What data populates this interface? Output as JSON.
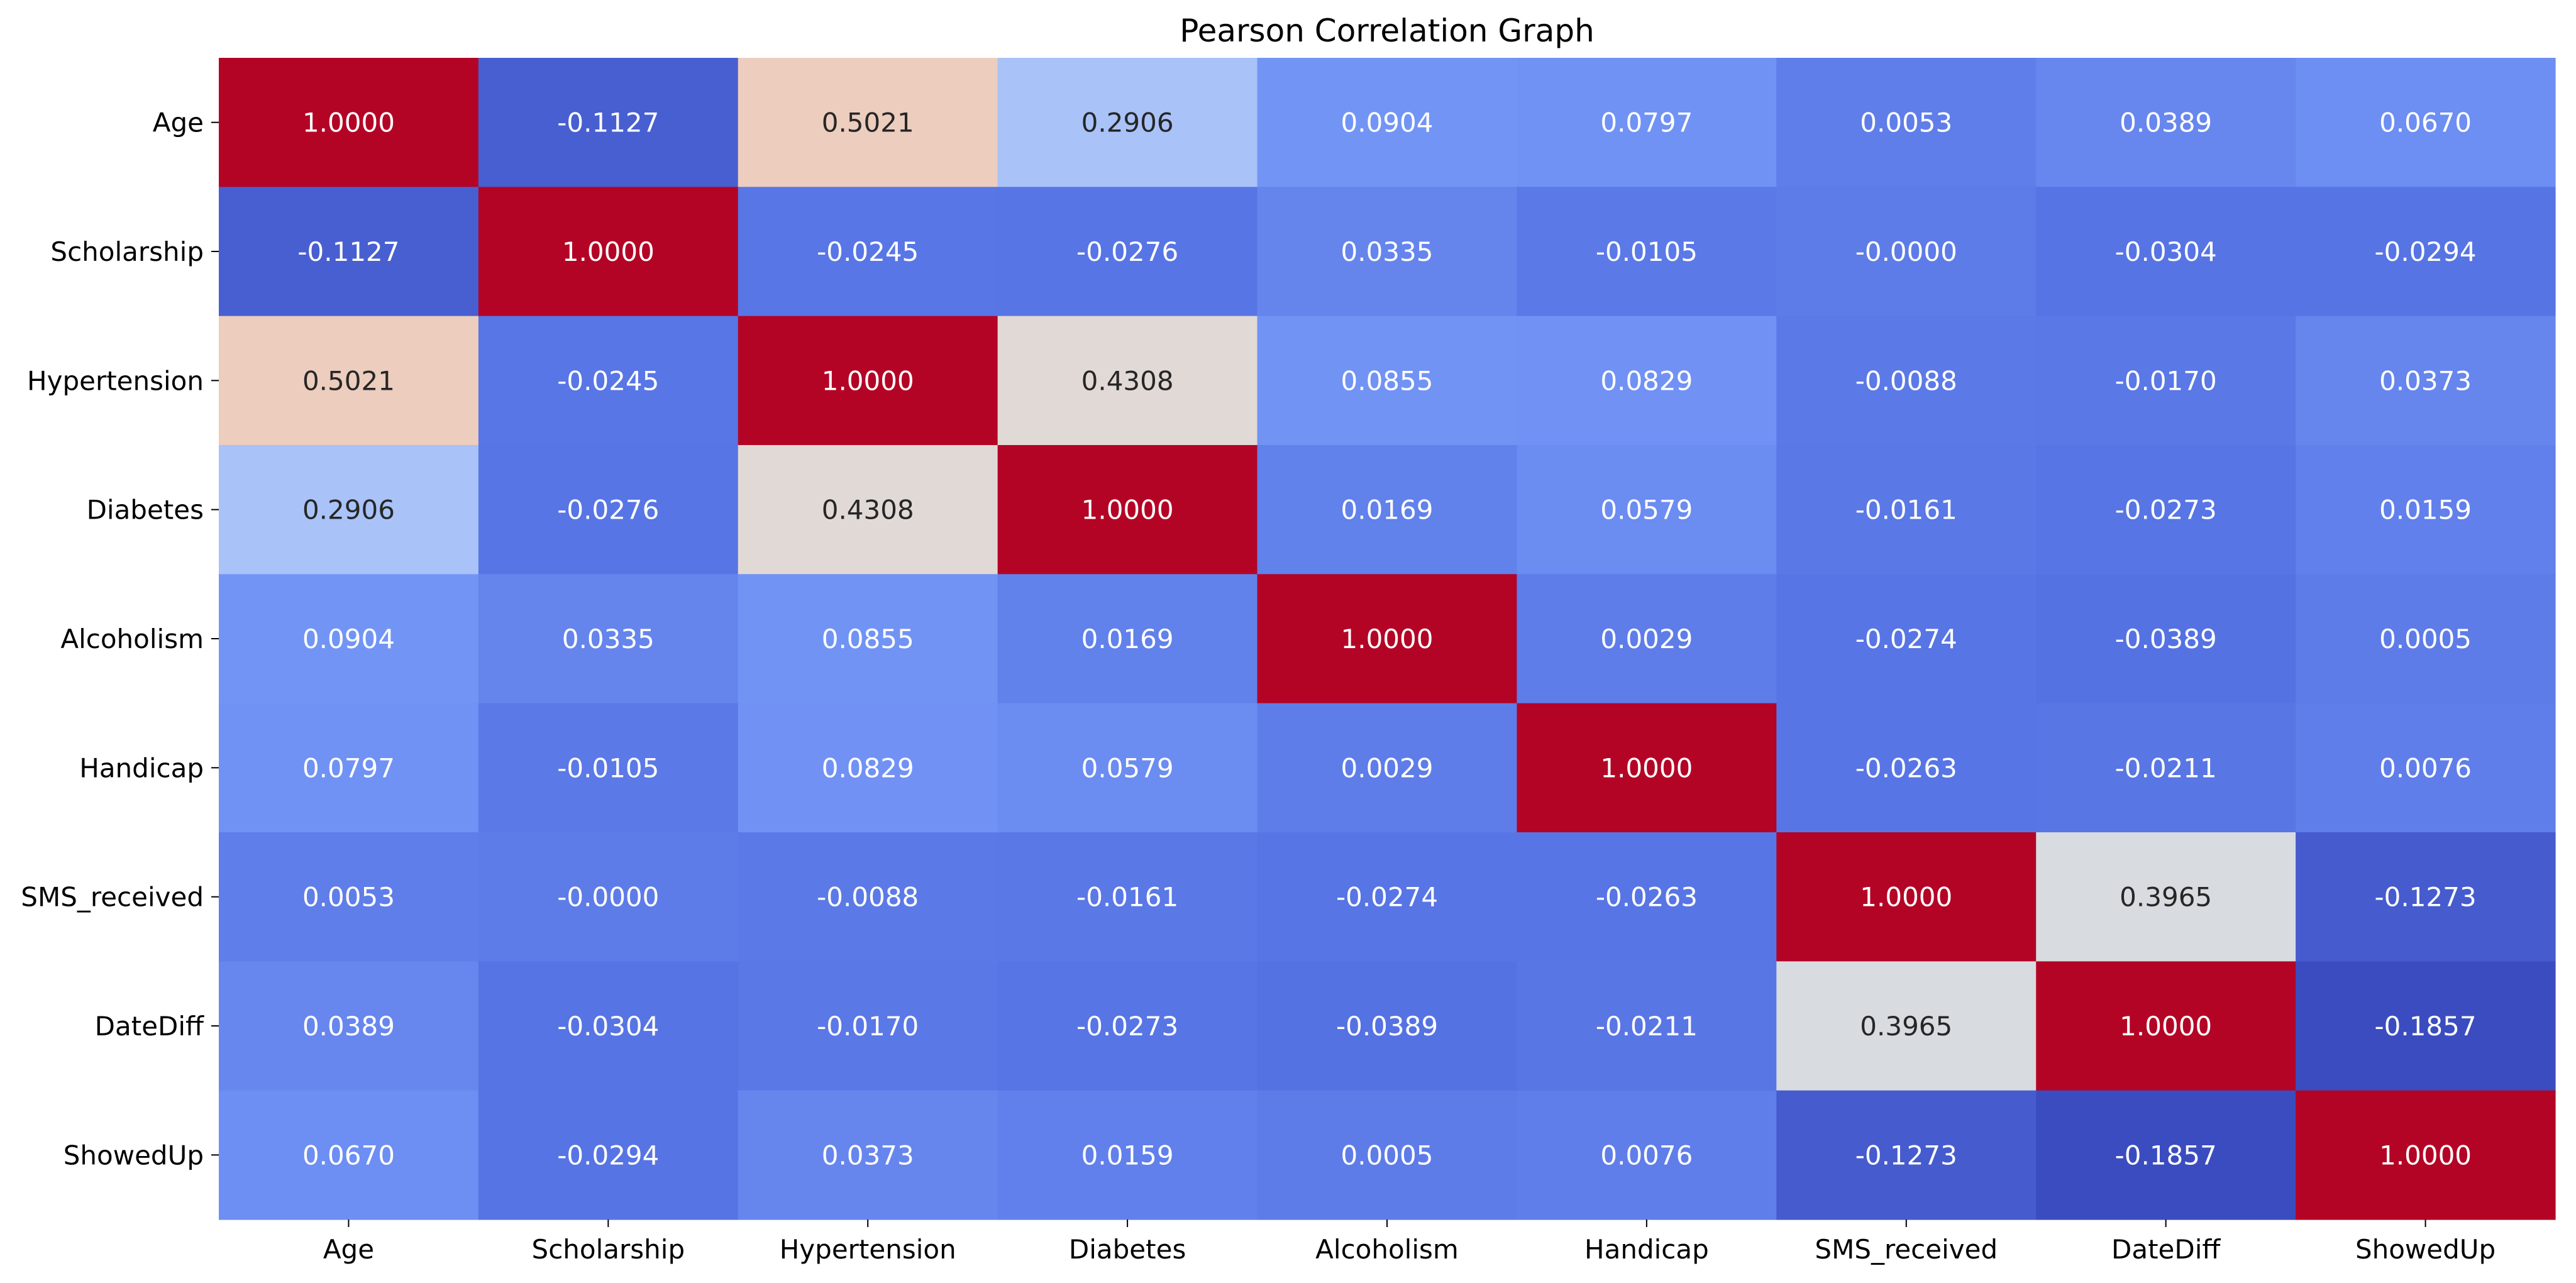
{
  "chart_data": {
    "type": "heatmap",
    "title": "Pearson Correlation Graph",
    "xlabel": "",
    "ylabel": "",
    "x_categories": [
      "Age",
      "Scholarship",
      "Hypertension",
      "Diabetes",
      "Alcoholism",
      "Handicap",
      "SMS_received",
      "DateDiff",
      "ShowedUp"
    ],
    "y_categories": [
      "Age",
      "Scholarship",
      "Hypertension",
      "Diabetes",
      "Alcoholism",
      "Handicap",
      "SMS_received",
      "DateDiff",
      "ShowedUp"
    ],
    "values": [
      [
        1.0,
        -0.1127,
        0.5021,
        0.2906,
        0.0904,
        0.0797,
        0.0053,
        0.0389,
        0.067
      ],
      [
        -0.1127,
        1.0,
        -0.0245,
        -0.0276,
        0.0335,
        -0.0105,
        -0.0,
        -0.0304,
        -0.0294
      ],
      [
        0.5021,
        -0.0245,
        1.0,
        0.4308,
        0.0855,
        0.0829,
        -0.0088,
        -0.017,
        0.0373
      ],
      [
        0.2906,
        -0.0276,
        0.4308,
        1.0,
        0.0169,
        0.0579,
        -0.0161,
        -0.0273,
        0.0159
      ],
      [
        0.0904,
        0.0335,
        0.0855,
        0.0169,
        1.0,
        0.0029,
        -0.0274,
        -0.0389,
        0.0005
      ],
      [
        0.0797,
        -0.0105,
        0.0829,
        0.0579,
        0.0029,
        1.0,
        -0.0263,
        -0.0211,
        0.0076
      ],
      [
        0.0053,
        -0.0,
        -0.0088,
        -0.0161,
        -0.0274,
        -0.0263,
        1.0,
        0.3965,
        -0.1273
      ],
      [
        0.0389,
        -0.0304,
        -0.017,
        -0.0273,
        -0.0389,
        -0.0211,
        0.3965,
        1.0,
        -0.1857
      ],
      [
        0.067,
        -0.0294,
        0.0373,
        0.0159,
        0.0005,
        0.0076,
        -0.1273,
        -0.1857,
        1.0
      ]
    ],
    "value_labels": [
      [
        "1.0000",
        "-0.1127",
        "0.5021",
        "0.2906",
        "0.0904",
        "0.0797",
        "0.0053",
        "0.0389",
        "0.0670"
      ],
      [
        "-0.1127",
        "1.0000",
        "-0.0245",
        "-0.0276",
        "0.0335",
        "-0.0105",
        "-0.0000",
        "-0.0304",
        "-0.0294"
      ],
      [
        "0.5021",
        "-0.0245",
        "1.0000",
        "0.4308",
        "0.0855",
        "0.0829",
        "-0.0088",
        "-0.0170",
        "0.0373"
      ],
      [
        "0.2906",
        "-0.0276",
        "0.4308",
        "1.0000",
        "0.0169",
        "0.0579",
        "-0.0161",
        "-0.0273",
        "0.0159"
      ],
      [
        "0.0904",
        "0.0335",
        "0.0855",
        "0.0169",
        "1.0000",
        "0.0029",
        "-0.0274",
        "-0.0389",
        "0.0005"
      ],
      [
        "0.0797",
        "-0.0105",
        "0.0829",
        "0.0579",
        "0.0029",
        "1.0000",
        "-0.0263",
        "-0.0211",
        "0.0076"
      ],
      [
        "0.0053",
        "-0.0000",
        "-0.0088",
        "-0.0161",
        "-0.0274",
        "-0.0263",
        "1.0000",
        "0.3965",
        "-0.1273"
      ],
      [
        "0.0389",
        "-0.0304",
        "-0.0170",
        "-0.0273",
        "-0.0389",
        "-0.0211",
        "0.3965",
        "1.0000",
        "-0.1857"
      ],
      [
        "0.0670",
        "-0.0294",
        "0.0373",
        "0.0159",
        "0.0005",
        "0.0076",
        "-0.1273",
        "-0.1857",
        "1.0000"
      ]
    ],
    "color_map": "coolwarm",
    "color_range": [
      -0.1857,
      1.0
    ],
    "colorbar": false,
    "grid": false
  }
}
